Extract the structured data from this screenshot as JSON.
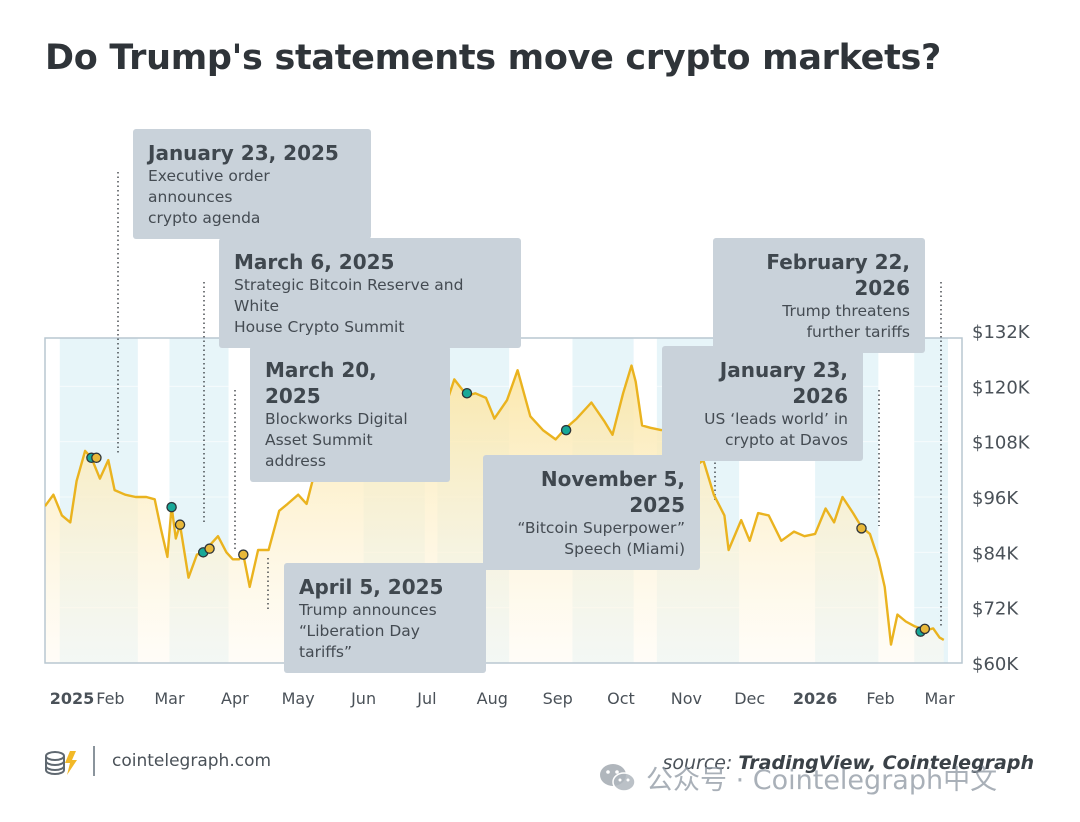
{
  "title": "Do Trump's statements move crypto markets?",
  "colors": {
    "line": "#eab31f",
    "area_top": "#fbe6a6",
    "area_bottom": "#fffaf0",
    "band": "#dff1f7",
    "callout_bg": "#c9d2da",
    "marker_teal": "#17a898",
    "marker_gold": "#e8b83a",
    "plot_border": "#b9c7d1"
  },
  "chart_data": {
    "type": "line",
    "x_range": [
      "2025-01-01",
      "2026-03-05"
    ],
    "ylim": [
      60000,
      132000
    ],
    "y_ticks": [
      {
        "value": 60000,
        "label": "$60K"
      },
      {
        "value": 72000,
        "label": "$72K"
      },
      {
        "value": 84000,
        "label": "$84K"
      },
      {
        "value": 96000,
        "label": "$96K"
      },
      {
        "value": 108000,
        "label": "$108K"
      },
      {
        "value": 120000,
        "label": "$120K"
      },
      {
        "value": 132000,
        "label": "$132K"
      }
    ],
    "x_ticks": [
      {
        "date": "2025-01-01",
        "label": "2025",
        "bold": true
      },
      {
        "date": "2025-02-01",
        "label": "Feb",
        "bold": false
      },
      {
        "date": "2025-03-01",
        "label": "Mar",
        "bold": false
      },
      {
        "date": "2025-04-01",
        "label": "Apr",
        "bold": false
      },
      {
        "date": "2025-05-01",
        "label": "May",
        "bold": false
      },
      {
        "date": "2025-06-01",
        "label": "Jun",
        "bold": false
      },
      {
        "date": "2025-07-01",
        "label": "Jul",
        "bold": false
      },
      {
        "date": "2025-08-01",
        "label": "Aug",
        "bold": false
      },
      {
        "date": "2025-09-01",
        "label": "Sep",
        "bold": false
      },
      {
        "date": "2025-10-01",
        "label": "Oct",
        "bold": false
      },
      {
        "date": "2025-11-01",
        "label": "Nov",
        "bold": false
      },
      {
        "date": "2025-12-01",
        "label": "Dec",
        "bold": false
      },
      {
        "date": "2026-01-01",
        "label": "2026",
        "bold": true
      },
      {
        "date": "2026-02-01",
        "label": "Feb",
        "bold": false
      },
      {
        "date": "2026-03-01",
        "label": "Mar",
        "bold": false
      }
    ],
    "series": [
      {
        "points": [
          [
            "2025-01-01",
            94000
          ],
          [
            "2025-01-05",
            96500
          ],
          [
            "2025-01-09",
            92000
          ],
          [
            "2025-01-13",
            90500
          ],
          [
            "2025-01-16",
            99500
          ],
          [
            "2025-01-20",
            106000
          ],
          [
            "2025-01-23",
            104500
          ],
          [
            "2025-01-27",
            100000
          ],
          [
            "2025-01-31",
            104000
          ],
          [
            "2025-02-03",
            97500
          ],
          [
            "2025-02-08",
            96500
          ],
          [
            "2025-02-13",
            96000
          ],
          [
            "2025-02-18",
            96000
          ],
          [
            "2025-02-22",
            95500
          ],
          [
            "2025-02-25",
            89000
          ],
          [
            "2025-02-28",
            83000
          ],
          [
            "2025-03-02",
            94000
          ],
          [
            "2025-03-04",
            87000
          ],
          [
            "2025-03-06",
            90000
          ],
          [
            "2025-03-10",
            78500
          ],
          [
            "2025-03-14",
            83500
          ],
          [
            "2025-03-17",
            84000
          ],
          [
            "2025-03-20",
            85500
          ],
          [
            "2025-03-24",
            87500
          ],
          [
            "2025-03-28",
            84000
          ],
          [
            "2025-03-31",
            82500
          ],
          [
            "2025-04-03",
            82500
          ],
          [
            "2025-04-05",
            83500
          ],
          [
            "2025-04-08",
            76500
          ],
          [
            "2025-04-12",
            84500
          ],
          [
            "2025-04-17",
            84500
          ],
          [
            "2025-04-22",
            93000
          ],
          [
            "2025-04-26",
            94500
          ],
          [
            "2025-05-01",
            96500
          ],
          [
            "2025-05-05",
            94500
          ],
          [
            "2025-05-10",
            103500
          ],
          [
            "2025-05-16",
            103500
          ],
          [
            "2025-05-22",
            111000
          ],
          [
            "2025-05-27",
            108500
          ],
          [
            "2025-06-01",
            104500
          ],
          [
            "2025-06-06",
            104000
          ],
          [
            "2025-06-10",
            110000
          ],
          [
            "2025-06-15",
            105500
          ],
          [
            "2025-06-22",
            101000
          ],
          [
            "2025-06-27",
            107500
          ],
          [
            "2025-07-01",
            105500
          ],
          [
            "2025-07-05",
            108500
          ],
          [
            "2025-07-10",
            116000
          ],
          [
            "2025-07-14",
            121500
          ],
          [
            "2025-07-20",
            118000
          ],
          [
            "2025-07-24",
            118500
          ],
          [
            "2025-07-29",
            117500
          ],
          [
            "2025-08-02",
            113000
          ],
          [
            "2025-08-08",
            117000
          ],
          [
            "2025-08-13",
            123500
          ],
          [
            "2025-08-19",
            113500
          ],
          [
            "2025-08-25",
            110500
          ],
          [
            "2025-08-31",
            108500
          ],
          [
            "2025-09-05",
            111000
          ],
          [
            "2025-09-10",
            113000
          ],
          [
            "2025-09-17",
            116500
          ],
          [
            "2025-09-23",
            112500
          ],
          [
            "2025-09-27",
            109500
          ],
          [
            "2025-10-02",
            118500
          ],
          [
            "2025-10-06",
            124500
          ],
          [
            "2025-10-08",
            121000
          ],
          [
            "2025-10-11",
            111500
          ],
          [
            "2025-10-15",
            111000
          ],
          [
            "2025-10-20",
            110500
          ],
          [
            "2025-10-24",
            110500
          ],
          [
            "2025-10-28",
            114000
          ],
          [
            "2025-11-01",
            110000
          ],
          [
            "2025-11-05",
            102500
          ],
          [
            "2025-11-09",
            104000
          ],
          [
            "2025-11-14",
            96500
          ],
          [
            "2025-11-19",
            92000
          ],
          [
            "2025-11-21",
            84500
          ],
          [
            "2025-11-27",
            91000
          ],
          [
            "2025-12-01",
            86500
          ],
          [
            "2025-12-05",
            92500
          ],
          [
            "2025-12-10",
            92000
          ],
          [
            "2025-12-16",
            86500
          ],
          [
            "2025-12-22",
            88500
          ],
          [
            "2025-12-27",
            87500
          ],
          [
            "2026-01-01",
            88000
          ],
          [
            "2026-01-06",
            93500
          ],
          [
            "2026-01-10",
            90500
          ],
          [
            "2026-01-14",
            96000
          ],
          [
            "2026-01-19",
            92500
          ],
          [
            "2026-01-23",
            89500
          ],
          [
            "2026-01-27",
            88000
          ],
          [
            "2026-01-31",
            82500
          ],
          [
            "2026-02-03",
            76500
          ],
          [
            "2026-02-06",
            64000
          ],
          [
            "2026-02-09",
            70500
          ],
          [
            "2026-02-13",
            69000
          ],
          [
            "2026-02-17",
            68000
          ],
          [
            "2026-02-20",
            67500
          ],
          [
            "2026-02-22",
            67000
          ],
          [
            "2026-02-26",
            67500
          ],
          [
            "2026-03-01",
            65500
          ],
          [
            "2026-03-03",
            65000
          ]
        ]
      }
    ],
    "events": [
      {
        "date": "2025-01-23",
        "value": 104500,
        "marker": "teal"
      },
      {
        "date": "2025-01-23",
        "value": 104500,
        "marker": "gold"
      },
      {
        "date": "2025-03-02",
        "value": 93800,
        "marker": "teal"
      },
      {
        "date": "2025-03-06",
        "value": 90000,
        "marker": "gold"
      },
      {
        "date": "2025-03-17",
        "value": 84000,
        "marker": "teal"
      },
      {
        "date": "2025-03-20",
        "value": 84800,
        "marker": "gold"
      },
      {
        "date": "2025-04-05",
        "value": 83500,
        "marker": "gold"
      },
      {
        "date": "2025-07-02",
        "value": 106000,
        "marker": "teal"
      },
      {
        "date": "2025-07-20",
        "value": 118500,
        "marker": "teal"
      },
      {
        "date": "2025-09-05",
        "value": 110500,
        "marker": "teal"
      },
      {
        "date": "2025-11-05",
        "value": 102500,
        "marker": "gold"
      },
      {
        "date": "2026-01-23",
        "value": 89200,
        "marker": "gold"
      },
      {
        "date": "2026-02-20",
        "value": 66800,
        "marker": "teal"
      },
      {
        "date": "2026-02-22",
        "value": 67400,
        "marker": "gold"
      }
    ],
    "annotations": [
      {
        "date_label": "January 23, 2025",
        "text": "Executive order announces\ncrypto agenda"
      },
      {
        "date_label": "March 6, 2025",
        "text": "Strategic Bitcoin Reserve and White\nHouse Crypto Summit"
      },
      {
        "date_label": "March 20, 2025",
        "text": "Blockworks Digital\nAsset Summit address"
      },
      {
        "date_label": "April 5, 2025",
        "text": "Trump announces\n“Liberation Day tariffs”"
      },
      {
        "date_label": "November 5, 2025",
        "text": "“Bitcoin Superpower”\nSpeech (Miami)"
      },
      {
        "date_label": "January 23, 2026",
        "text": "US ‘leads world’ in\ncrypto at Davos"
      },
      {
        "date_label": "February 22, 2026",
        "text": "Trump threatens\nfurther tariffs"
      }
    ],
    "highlight_bands": [
      [
        "2025-01-08",
        "2025-02-14"
      ],
      [
        "2025-03-01",
        "2025-03-29"
      ],
      [
        "2025-06-01",
        "2025-06-30"
      ],
      [
        "2025-07-06",
        "2025-08-09"
      ],
      [
        "2025-09-08",
        "2025-10-07"
      ],
      [
        "2025-10-18",
        "2025-11-26"
      ],
      [
        "2026-01-01",
        "2026-01-31"
      ],
      [
        "2026-02-17",
        "2026-03-05"
      ]
    ]
  },
  "footer": {
    "logo_icon": "cointelegraph-logo-icon",
    "site": "cointelegraph.com",
    "source_label": "source:",
    "source_value": "TradingView, Cointelegraph"
  },
  "watermark": {
    "icon": "wechat-icon",
    "text": "公众号 · Cointelegraph中文"
  }
}
